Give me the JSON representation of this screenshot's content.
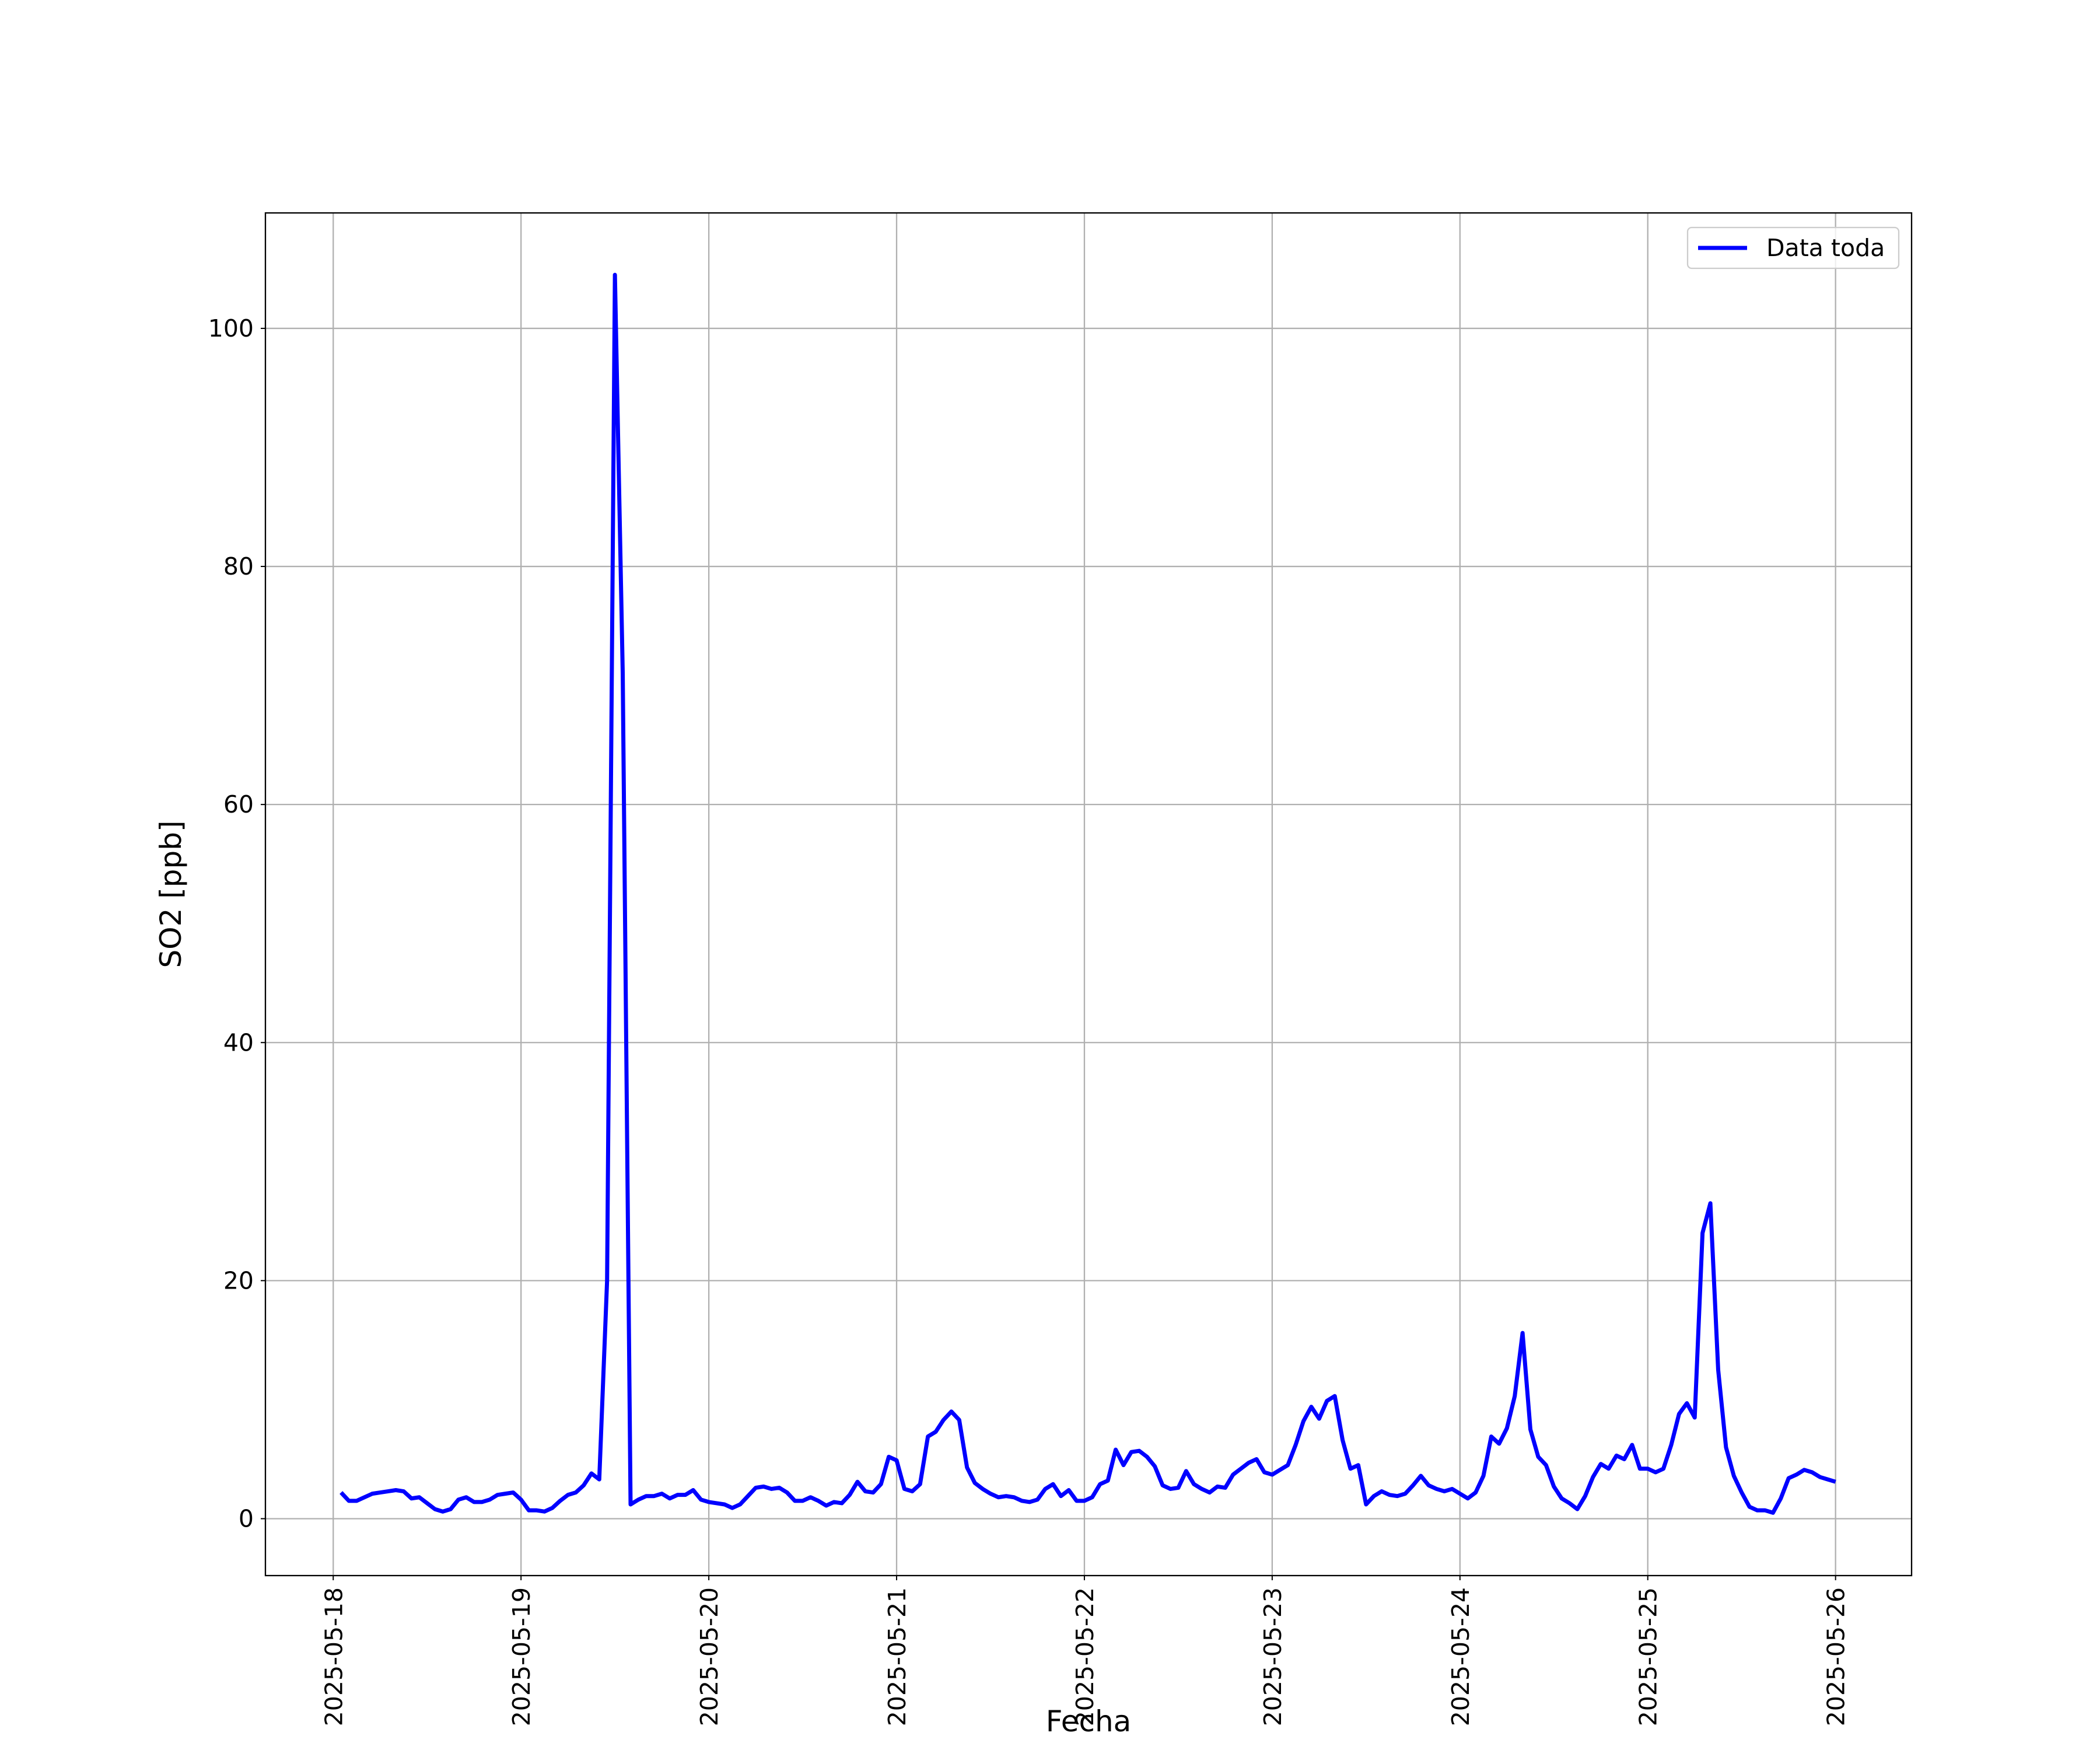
{
  "chart_data": {
    "type": "line",
    "xlabel": "Fecha",
    "ylabel": "SO2 [ppb]",
    "x": [
      "2025-05-18T01:00",
      "2025-05-18T02:00",
      "2025-05-18T03:00",
      "2025-05-18T04:00",
      "2025-05-18T05:00",
      "2025-05-18T06:00",
      "2025-05-18T07:00",
      "2025-05-18T08:00",
      "2025-05-18T09:00",
      "2025-05-18T10:00",
      "2025-05-18T11:00",
      "2025-05-18T12:00",
      "2025-05-18T13:00",
      "2025-05-18T14:00",
      "2025-05-18T15:00",
      "2025-05-18T16:00",
      "2025-05-18T17:00",
      "2025-05-18T18:00",
      "2025-05-18T19:00",
      "2025-05-18T20:00",
      "2025-05-18T21:00",
      "2025-05-18T22:00",
      "2025-05-18T23:00",
      "2025-05-19T00:00",
      "2025-05-19T01:00",
      "2025-05-19T02:00",
      "2025-05-19T03:00",
      "2025-05-19T04:00",
      "2025-05-19T05:00",
      "2025-05-19T06:00",
      "2025-05-19T07:00",
      "2025-05-19T08:00",
      "2025-05-19T09:00",
      "2025-05-19T10:00",
      "2025-05-19T11:00",
      "2025-05-19T12:00",
      "2025-05-19T13:00",
      "2025-05-19T14:00",
      "2025-05-19T15:00",
      "2025-05-19T16:00",
      "2025-05-19T17:00",
      "2025-05-19T18:00",
      "2025-05-19T19:00",
      "2025-05-19T20:00",
      "2025-05-19T21:00",
      "2025-05-19T22:00",
      "2025-05-19T23:00",
      "2025-05-20T00:00",
      "2025-05-20T01:00",
      "2025-05-20T02:00",
      "2025-05-20T03:00",
      "2025-05-20T04:00",
      "2025-05-20T05:00",
      "2025-05-20T06:00",
      "2025-05-20T07:00",
      "2025-05-20T08:00",
      "2025-05-20T09:00",
      "2025-05-20T10:00",
      "2025-05-20T11:00",
      "2025-05-20T12:00",
      "2025-05-20T13:00",
      "2025-05-20T14:00",
      "2025-05-20T15:00",
      "2025-05-20T16:00",
      "2025-05-20T17:00",
      "2025-05-20T18:00",
      "2025-05-20T19:00",
      "2025-05-20T20:00",
      "2025-05-20T21:00",
      "2025-05-20T22:00",
      "2025-05-20T23:00",
      "2025-05-21T00:00",
      "2025-05-21T01:00",
      "2025-05-21T02:00",
      "2025-05-21T03:00",
      "2025-05-21T04:00",
      "2025-05-21T05:00",
      "2025-05-21T06:00",
      "2025-05-21T07:00",
      "2025-05-21T08:00",
      "2025-05-21T09:00",
      "2025-05-21T10:00",
      "2025-05-21T11:00",
      "2025-05-21T12:00",
      "2025-05-21T13:00",
      "2025-05-21T14:00",
      "2025-05-21T15:00",
      "2025-05-21T16:00",
      "2025-05-21T17:00",
      "2025-05-21T18:00",
      "2025-05-21T19:00",
      "2025-05-21T20:00",
      "2025-05-21T21:00",
      "2025-05-21T22:00",
      "2025-05-21T23:00",
      "2025-05-22T00:00",
      "2025-05-22T01:00",
      "2025-05-22T02:00",
      "2025-05-22T03:00",
      "2025-05-22T04:00",
      "2025-05-22T05:00",
      "2025-05-22T06:00",
      "2025-05-22T07:00",
      "2025-05-22T08:00",
      "2025-05-22T09:00",
      "2025-05-22T10:00",
      "2025-05-22T11:00",
      "2025-05-22T12:00",
      "2025-05-22T13:00",
      "2025-05-22T14:00",
      "2025-05-22T15:00",
      "2025-05-22T16:00",
      "2025-05-22T17:00",
      "2025-05-22T18:00",
      "2025-05-22T19:00",
      "2025-05-22T20:00",
      "2025-05-22T21:00",
      "2025-05-22T22:00",
      "2025-05-22T23:00",
      "2025-05-23T00:00",
      "2025-05-23T01:00",
      "2025-05-23T02:00",
      "2025-05-23T03:00",
      "2025-05-23T04:00",
      "2025-05-23T05:00",
      "2025-05-23T06:00",
      "2025-05-23T07:00",
      "2025-05-23T08:00",
      "2025-05-23T09:00",
      "2025-05-23T10:00",
      "2025-05-23T11:00",
      "2025-05-23T12:00",
      "2025-05-23T13:00",
      "2025-05-23T14:00",
      "2025-05-23T15:00",
      "2025-05-23T16:00",
      "2025-05-23T17:00",
      "2025-05-23T18:00",
      "2025-05-23T19:00",
      "2025-05-23T20:00",
      "2025-05-23T21:00",
      "2025-05-23T22:00",
      "2025-05-23T23:00",
      "2025-05-24T00:00",
      "2025-05-24T01:00",
      "2025-05-24T02:00",
      "2025-05-24T03:00",
      "2025-05-24T04:00",
      "2025-05-24T05:00",
      "2025-05-24T06:00",
      "2025-05-24T07:00",
      "2025-05-24T08:00",
      "2025-05-24T09:00",
      "2025-05-24T10:00",
      "2025-05-24T11:00",
      "2025-05-24T12:00",
      "2025-05-24T13:00",
      "2025-05-24T14:00",
      "2025-05-24T15:00",
      "2025-05-24T16:00",
      "2025-05-24T17:00",
      "2025-05-24T18:00",
      "2025-05-24T19:00",
      "2025-05-24T20:00",
      "2025-05-24T21:00",
      "2025-05-24T22:00",
      "2025-05-24T23:00",
      "2025-05-25T00:00",
      "2025-05-25T01:00",
      "2025-05-25T02:00",
      "2025-05-25T03:00",
      "2025-05-25T04:00",
      "2025-05-25T05:00",
      "2025-05-25T06:00",
      "2025-05-25T07:00",
      "2025-05-25T08:00",
      "2025-05-25T09:00",
      "2025-05-25T10:00",
      "2025-05-25T11:00",
      "2025-05-25T12:00",
      "2025-05-25T13:00",
      "2025-05-25T14:00",
      "2025-05-25T15:00",
      "2025-05-25T16:00",
      "2025-05-25T17:00",
      "2025-05-25T18:00",
      "2025-05-25T19:00",
      "2025-05-25T20:00",
      "2025-05-25T21:00",
      "2025-05-25T22:00",
      "2025-05-25T23:00",
      "2025-05-26T00:00"
    ],
    "series": [
      {
        "name": "Data toda",
        "color": "#0000ff",
        "values": [
          2.2,
          1.5,
          1.5,
          1.8,
          2.1,
          2.2,
          2.3,
          2.4,
          2.3,
          1.7,
          1.8,
          1.3,
          0.8,
          0.6,
          0.8,
          1.6,
          1.8,
          1.4,
          1.4,
          1.6,
          2.0,
          2.1,
          2.2,
          1.6,
          0.7,
          0.7,
          0.6,
          0.9,
          1.5,
          2.0,
          2.2,
          2.8,
          3.8,
          3.3,
          20,
          104.5,
          71,
          1.2,
          1.6,
          1.9,
          1.9,
          2.1,
          1.7,
          2.0,
          2.0,
          2.4,
          1.6,
          1.4,
          1.3,
          1.2,
          0.9,
          1.2,
          1.9,
          2.6,
          2.7,
          2.5,
          2.6,
          2.2,
          1.5,
          1.5,
          1.8,
          1.5,
          1.1,
          1.4,
          1.3,
          2.0,
          3.1,
          2.3,
          2.2,
          2.9,
          5.2,
          4.9,
          2.5,
          2.3,
          2.9,
          6.9,
          7.3,
          8.3,
          9.0,
          8.3,
          4.3,
          3.0,
          2.5,
          2.1,
          1.8,
          1.9,
          1.8,
          1.5,
          1.4,
          1.6,
          2.5,
          2.9,
          1.9,
          2.4,
          1.5,
          1.5,
          1.8,
          2.9,
          3.2,
          5.8,
          4.5,
          5.6,
          5.7,
          5.2,
          4.4,
          2.8,
          2.5,
          2.6,
          4.0,
          2.9,
          2.5,
          2.2,
          2.7,
          2.6,
          3.7,
          4.2,
          4.7,
          5.0,
          3.9,
          3.7,
          4.1,
          4.5,
          6.2,
          8.2,
          9.4,
          8.4,
          9.9,
          10.3,
          6.6,
          4.2,
          4.5,
          1.2,
          1.9,
          2.3,
          2.0,
          1.9,
          2.1,
          2.8,
          3.6,
          2.8,
          2.5,
          2.3,
          2.5,
          2.1,
          1.7,
          2.2,
          3.6,
          6.9,
          6.3,
          7.6,
          10.3,
          15.6,
          7.5,
          5.2,
          4.5,
          2.7,
          1.7,
          1.3,
          0.8,
          1.9,
          3.5,
          4.6,
          4.2,
          5.3,
          5.0,
          6.2,
          4.2,
          4.2,
          3.9,
          4.2,
          6.2,
          8.8,
          9.7,
          8.5,
          24,
          26.5,
          12.5,
          6.0,
          3.6,
          2.2,
          1.0,
          0.7,
          0.7,
          0.5,
          1.7,
          3.4,
          3.7,
          4.1,
          3.9,
          3.5,
          3.3,
          3.1
        ]
      }
    ],
    "xlim": [
      "2025-05-17T15:20",
      "2025-05-26T09:43"
    ],
    "xticks": [
      "2025-05-18",
      "2025-05-19",
      "2025-05-20",
      "2025-05-21",
      "2025-05-22",
      "2025-05-23",
      "2025-05-24",
      "2025-05-25",
      "2025-05-26"
    ],
    "ylim": [
      -4.78,
      109.7
    ],
    "yticks": [
      0,
      20,
      40,
      60,
      80,
      100
    ],
    "grid": true,
    "legend": "upper right"
  }
}
